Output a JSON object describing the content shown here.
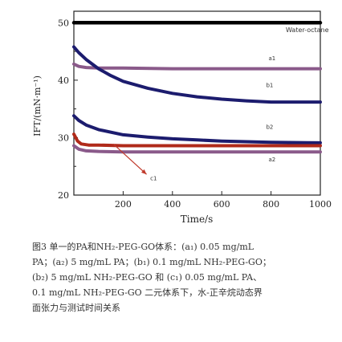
{
  "chart_data": {
    "type": "line",
    "xlabel": "Time/s",
    "ylabel": "IFT/(mN·m⁻¹)",
    "xlim": [
      0,
      1000
    ],
    "ylim": [
      20,
      52
    ],
    "xticks": [
      200,
      400,
      600,
      800,
      1000
    ],
    "yticks": [
      20,
      30,
      40,
      50
    ],
    "grid": false,
    "series": [
      {
        "name": "Water-octane",
        "color": "#000000",
        "x": [
          0,
          250,
          500,
          750,
          1000
        ],
        "y": [
          50,
          50,
          50,
          50,
          50
        ]
      },
      {
        "name": "a1",
        "color": "#8a5a8a",
        "x": [
          0,
          20,
          50,
          100,
          200,
          400,
          600,
          800,
          1000
        ],
        "y": [
          42.8,
          42.4,
          42.2,
          42.1,
          42.1,
          42.0,
          42.0,
          42.0,
          42.0
        ]
      },
      {
        "name": "b1",
        "color": "#1c1c6e",
        "x": [
          0,
          20,
          50,
          100,
          150,
          200,
          300,
          400,
          500,
          600,
          700,
          800,
          1000
        ],
        "y": [
          45.8,
          44.8,
          43.6,
          42.0,
          40.8,
          39.8,
          38.6,
          37.7,
          37.1,
          36.7,
          36.4,
          36.2,
          36.2
        ]
      },
      {
        "name": "b2",
        "color": "#1c1c6e",
        "x": [
          0,
          20,
          50,
          100,
          200,
          300,
          400,
          500,
          600,
          800,
          1000
        ],
        "y": [
          33.8,
          33.0,
          32.2,
          31.4,
          30.5,
          30.1,
          29.8,
          29.6,
          29.4,
          29.2,
          29.1
        ]
      },
      {
        "name": "c1",
        "color": "#b02a1a",
        "x": [
          0,
          15,
          30,
          60,
          100,
          200,
          400,
          600,
          800,
          1000
        ],
        "y": [
          30.6,
          29.4,
          28.9,
          28.7,
          28.7,
          28.6,
          28.6,
          28.6,
          28.6,
          28.6
        ]
      },
      {
        "name": "a2",
        "color": "#8a5a8a",
        "x": [
          0,
          20,
          50,
          100,
          200,
          400,
          600,
          800,
          1000
        ],
        "y": [
          28.6,
          28.0,
          27.7,
          27.6,
          27.5,
          27.5,
          27.5,
          27.5,
          27.5
        ]
      }
    ],
    "annotations": [
      {
        "text": "Water-octane",
        "x": 860,
        "y": 48.4
      },
      {
        "text": "a1",
        "x": 790,
        "y": 43.5
      },
      {
        "text": "b1",
        "x": 780,
        "y": 38.8
      },
      {
        "text": "b2",
        "x": 780,
        "y": 31.5
      },
      {
        "text": "a2",
        "x": 790,
        "y": 25.9
      },
      {
        "text": "c1",
        "x": 310,
        "y": 22.6
      }
    ]
  },
  "caption": {
    "lines": [
      "图3  单一的PA和NH₂-PEG-GO体系：(a₁) 0.05 mg/mL",
      "PA；(a₂) 5 mg/mL PA；(b₁) 0.1 mg/mL NH₂-PEG-GO；",
      "(b₂) 5 mg/mL NH₂-PEG-GO 和 (c₁) 0.05 mg/mL PA、",
      "0.1 mg/mL NH₂-PEG-GO 二元体系下，水-正辛烷动态界",
      "面张力与测试时间关系"
    ]
  }
}
